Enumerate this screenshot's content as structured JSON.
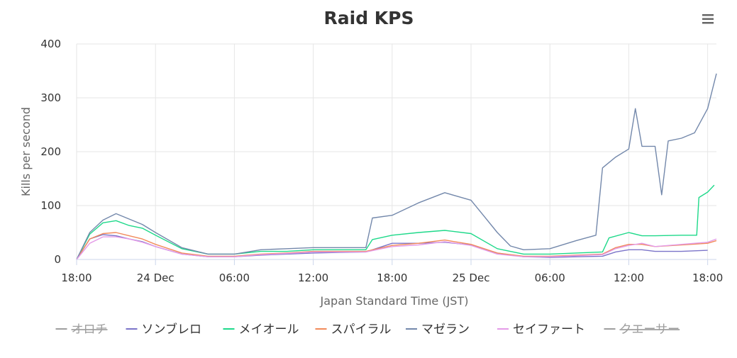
{
  "chart_data": {
    "type": "line",
    "title": "Raid KPS",
    "xlabel": "Japan Standard Time (JST)",
    "ylabel": "Kills per second",
    "ylim": [
      0,
      400
    ],
    "xlim": [
      "2020-12-23T18:00",
      "2020-12-25T18:40"
    ],
    "yticks": [
      0,
      100,
      200,
      300,
      400
    ],
    "xticks": [
      {
        "t": "2020-12-23T18:00",
        "label": "18:00"
      },
      {
        "t": "2020-12-24T00:00",
        "label": "24 Dec"
      },
      {
        "t": "2020-12-24T06:00",
        "label": "06:00"
      },
      {
        "t": "2020-12-24T12:00",
        "label": "12:00"
      },
      {
        "t": "2020-12-24T18:00",
        "label": "18:00"
      },
      {
        "t": "2020-12-25T00:00",
        "label": "25 Dec"
      },
      {
        "t": "2020-12-25T06:00",
        "label": "06:00"
      },
      {
        "t": "2020-12-25T12:00",
        "label": "12:00"
      },
      {
        "t": "2020-12-25T18:00",
        "label": "18:00"
      }
    ],
    "grid": true,
    "legend_position": "bottom",
    "series": [
      {
        "name": "オロチ",
        "color": "#9e9e9e",
        "hidden": true,
        "points": []
      },
      {
        "name": "ソンブレロ",
        "color": "#7b74c9",
        "hidden": false,
        "points": [
          [
            "2020-12-23T18:00",
            0
          ],
          [
            "2020-12-23T19:00",
            38
          ],
          [
            "2020-12-23T20:00",
            46
          ],
          [
            "2020-12-23T21:00",
            44
          ],
          [
            "2020-12-23T22:00",
            38
          ],
          [
            "2020-12-23T23:00",
            33
          ],
          [
            "2020-12-24T00:00",
            24
          ],
          [
            "2020-12-24T02:00",
            10
          ],
          [
            "2020-12-24T04:00",
            5
          ],
          [
            "2020-12-24T06:00",
            5
          ],
          [
            "2020-12-24T08:00",
            8
          ],
          [
            "2020-12-24T10:00",
            10
          ],
          [
            "2020-12-24T12:00",
            12
          ],
          [
            "2020-12-24T14:00",
            13
          ],
          [
            "2020-12-24T16:00",
            14
          ],
          [
            "2020-12-24T18:00",
            30
          ],
          [
            "2020-12-24T20:00",
            30
          ],
          [
            "2020-12-24T22:00",
            32
          ],
          [
            "2020-12-25T00:00",
            27
          ],
          [
            "2020-12-25T02:00",
            12
          ],
          [
            "2020-12-25T04:00",
            5
          ],
          [
            "2020-12-25T06:00",
            4
          ],
          [
            "2020-12-25T08:00",
            5
          ],
          [
            "2020-12-25T10:00",
            6
          ],
          [
            "2020-12-25T11:00",
            14
          ],
          [
            "2020-12-25T12:00",
            18
          ],
          [
            "2020-12-25T13:00",
            18
          ],
          [
            "2020-12-25T14:00",
            15
          ],
          [
            "2020-12-25T16:00",
            15
          ],
          [
            "2020-12-25T18:00",
            17
          ]
        ]
      },
      {
        "name": "メイオール",
        "color": "#1ed98a",
        "hidden": false,
        "points": [
          [
            "2020-12-23T18:00",
            0
          ],
          [
            "2020-12-23T19:00",
            47
          ],
          [
            "2020-12-23T20:00",
            68
          ],
          [
            "2020-12-23T21:00",
            72
          ],
          [
            "2020-12-23T22:00",
            63
          ],
          [
            "2020-12-23T23:00",
            58
          ],
          [
            "2020-12-24T00:00",
            45
          ],
          [
            "2020-12-24T02:00",
            20
          ],
          [
            "2020-12-24T04:00",
            10
          ],
          [
            "2020-12-24T06:00",
            10
          ],
          [
            "2020-12-24T08:00",
            15
          ],
          [
            "2020-12-24T10:00",
            15
          ],
          [
            "2020-12-24T12:00",
            18
          ],
          [
            "2020-12-24T14:00",
            18
          ],
          [
            "2020-12-24T16:00",
            18
          ],
          [
            "2020-12-24T16:30",
            37
          ],
          [
            "2020-12-24T18:00",
            45
          ],
          [
            "2020-12-24T20:00",
            50
          ],
          [
            "2020-12-24T22:00",
            54
          ],
          [
            "2020-12-25T00:00",
            48
          ],
          [
            "2020-12-25T02:00",
            20
          ],
          [
            "2020-12-25T04:00",
            10
          ],
          [
            "2020-12-25T06:00",
            10
          ],
          [
            "2020-12-25T08:00",
            12
          ],
          [
            "2020-12-25T10:00",
            14
          ],
          [
            "2020-12-25T10:30",
            40
          ],
          [
            "2020-12-25T12:00",
            50
          ],
          [
            "2020-12-25T13:00",
            44
          ],
          [
            "2020-12-25T14:00",
            44
          ],
          [
            "2020-12-25T16:00",
            45
          ],
          [
            "2020-12-25T17:10",
            45
          ],
          [
            "2020-12-25T17:20",
            115
          ],
          [
            "2020-12-25T18:00",
            125
          ],
          [
            "2020-12-25T18:30",
            138
          ]
        ]
      },
      {
        "name": "スパイラル",
        "color": "#f28a5a",
        "hidden": false,
        "points": [
          [
            "2020-12-23T18:00",
            0
          ],
          [
            "2020-12-23T19:00",
            38
          ],
          [
            "2020-12-23T20:00",
            48
          ],
          [
            "2020-12-23T21:00",
            50
          ],
          [
            "2020-12-23T22:00",
            44
          ],
          [
            "2020-12-23T23:00",
            38
          ],
          [
            "2020-12-24T00:00",
            28
          ],
          [
            "2020-12-24T02:00",
            12
          ],
          [
            "2020-12-24T04:00",
            6
          ],
          [
            "2020-12-24T06:00",
            6
          ],
          [
            "2020-12-24T08:00",
            10
          ],
          [
            "2020-12-24T10:00",
            12
          ],
          [
            "2020-12-24T12:00",
            15
          ],
          [
            "2020-12-24T14:00",
            15
          ],
          [
            "2020-12-24T16:00",
            15
          ],
          [
            "2020-12-24T18:00",
            26
          ],
          [
            "2020-12-24T20:00",
            30
          ],
          [
            "2020-12-24T22:00",
            36
          ],
          [
            "2020-12-25T00:00",
            28
          ],
          [
            "2020-12-25T02:00",
            12
          ],
          [
            "2020-12-25T04:00",
            6
          ],
          [
            "2020-12-25T06:00",
            6
          ],
          [
            "2020-12-25T08:00",
            8
          ],
          [
            "2020-12-25T10:00",
            10
          ],
          [
            "2020-12-25T11:00",
            22
          ],
          [
            "2020-12-25T12:00",
            28
          ],
          [
            "2020-12-25T13:00",
            28
          ],
          [
            "2020-12-25T14:00",
            24
          ],
          [
            "2020-12-25T16:00",
            27
          ],
          [
            "2020-12-25T18:00",
            30
          ],
          [
            "2020-12-25T18:40",
            35
          ]
        ]
      },
      {
        "name": "マゼラン",
        "color": "#7388ab",
        "hidden": false,
        "points": [
          [
            "2020-12-23T18:00",
            0
          ],
          [
            "2020-12-23T19:00",
            50
          ],
          [
            "2020-12-23T20:00",
            73
          ],
          [
            "2020-12-23T21:00",
            85
          ],
          [
            "2020-12-23T22:00",
            75
          ],
          [
            "2020-12-23T23:00",
            65
          ],
          [
            "2020-12-24T00:00",
            50
          ],
          [
            "2020-12-24T02:00",
            22
          ],
          [
            "2020-12-24T04:00",
            10
          ],
          [
            "2020-12-24T06:00",
            10
          ],
          [
            "2020-12-24T08:00",
            18
          ],
          [
            "2020-12-24T10:00",
            20
          ],
          [
            "2020-12-24T12:00",
            22
          ],
          [
            "2020-12-24T14:00",
            22
          ],
          [
            "2020-12-24T16:00",
            22
          ],
          [
            "2020-12-24T16:30",
            77
          ],
          [
            "2020-12-24T18:00",
            82
          ],
          [
            "2020-12-24T20:00",
            105
          ],
          [
            "2020-12-24T22:00",
            124
          ],
          [
            "2020-12-25T00:00",
            110
          ],
          [
            "2020-12-25T01:00",
            80
          ],
          [
            "2020-12-25T02:00",
            50
          ],
          [
            "2020-12-25T03:00",
            25
          ],
          [
            "2020-12-25T04:00",
            18
          ],
          [
            "2020-12-25T06:00",
            20
          ],
          [
            "2020-12-25T08:00",
            35
          ],
          [
            "2020-12-25T09:30",
            45
          ],
          [
            "2020-12-25T10:00",
            170
          ],
          [
            "2020-12-25T11:00",
            190
          ],
          [
            "2020-12-25T12:00",
            205
          ],
          [
            "2020-12-25T12:30",
            280
          ],
          [
            "2020-12-25T13:00",
            210
          ],
          [
            "2020-12-25T14:00",
            210
          ],
          [
            "2020-12-25T14:30",
            120
          ],
          [
            "2020-12-25T15:00",
            220
          ],
          [
            "2020-12-25T16:00",
            225
          ],
          [
            "2020-12-25T17:00",
            235
          ],
          [
            "2020-12-25T18:00",
            280
          ],
          [
            "2020-12-25T18:40",
            345
          ]
        ]
      },
      {
        "name": "セイファート",
        "color": "#e49be8",
        "hidden": false,
        "points": [
          [
            "2020-12-23T18:00",
            0
          ],
          [
            "2020-12-23T19:00",
            30
          ],
          [
            "2020-12-23T20:00",
            42
          ],
          [
            "2020-12-23T21:00",
            42
          ],
          [
            "2020-12-23T22:00",
            38
          ],
          [
            "2020-12-23T23:00",
            32
          ],
          [
            "2020-12-24T00:00",
            24
          ],
          [
            "2020-12-24T02:00",
            10
          ],
          [
            "2020-12-24T04:00",
            5
          ],
          [
            "2020-12-24T06:00",
            5
          ],
          [
            "2020-12-24T08:00",
            9
          ],
          [
            "2020-12-24T10:00",
            11
          ],
          [
            "2020-12-24T12:00",
            14
          ],
          [
            "2020-12-24T14:00",
            14
          ],
          [
            "2020-12-24T16:00",
            14
          ],
          [
            "2020-12-24T18:00",
            24
          ],
          [
            "2020-12-24T20:00",
            27
          ],
          [
            "2020-12-24T22:00",
            33
          ],
          [
            "2020-12-25T00:00",
            26
          ],
          [
            "2020-12-25T02:00",
            10
          ],
          [
            "2020-12-25T04:00",
            5
          ],
          [
            "2020-12-25T06:00",
            5
          ],
          [
            "2020-12-25T08:00",
            7
          ],
          [
            "2020-12-25T10:00",
            9
          ],
          [
            "2020-12-25T11:00",
            20
          ],
          [
            "2020-12-25T12:00",
            26
          ],
          [
            "2020-12-25T13:00",
            30
          ],
          [
            "2020-12-25T14:00",
            24
          ],
          [
            "2020-12-25T16:00",
            28
          ],
          [
            "2020-12-25T18:00",
            32
          ],
          [
            "2020-12-25T18:40",
            38
          ]
        ]
      },
      {
        "name": "クエーサー",
        "color": "#9e9e9e",
        "hidden": true,
        "points": []
      }
    ]
  },
  "toolbar": {
    "menu_icon": "hamburger-menu-icon"
  }
}
